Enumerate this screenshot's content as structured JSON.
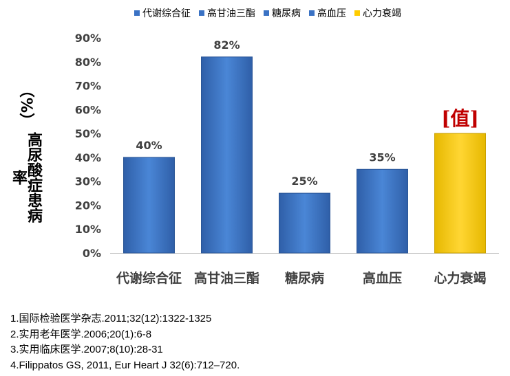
{
  "chart_data": {
    "type": "bar",
    "categories": [
      "代谢综合征",
      "高甘油三酯",
      "糖尿病",
      "高血压",
      "心力衰竭"
    ],
    "values": [
      40,
      82,
      25,
      35,
      50
    ],
    "value_labels": [
      "40%",
      "82%",
      "25%",
      "35%",
      "[值]"
    ],
    "bar_colors": [
      "#3A72C4",
      "#3A72C4",
      "#3A72C4",
      "#3A72C4",
      "#FFCC00"
    ],
    "value_label_colors": [
      "#404040",
      "#404040",
      "#404040",
      "#404040",
      "#C00000"
    ],
    "yticks": [
      "0%",
      "10%",
      "20%",
      "30%",
      "40%",
      "50%",
      "60%",
      "70%",
      "80%",
      "90%"
    ],
    "ylim": [
      0,
      90
    ],
    "ylabel_main": "高尿酸症患病率",
    "ylabel_unit": "（%）",
    "legend": [
      {
        "name": "代谢综合征",
        "color": "#3A72C4"
      },
      {
        "name": "高甘油三酯",
        "color": "#3A72C4"
      },
      {
        "name": "糖尿病",
        "color": "#3A72C4"
      },
      {
        "name": "高血压",
        "color": "#3A72C4"
      },
      {
        "name": "心力衰竭",
        "color": "#FFCC00"
      }
    ],
    "legend_position": "top",
    "grid": false
  },
  "references": [
    "1.国际检验医学杂志.2011;32(12):1322-1325",
    "2.实用老年医学.2006;20(1):6-8",
    "3.实用临床医学.2007;8(10):28-31",
    "4.Filippatos GS, 2011, Eur Heart J 32(6):712–720."
  ]
}
